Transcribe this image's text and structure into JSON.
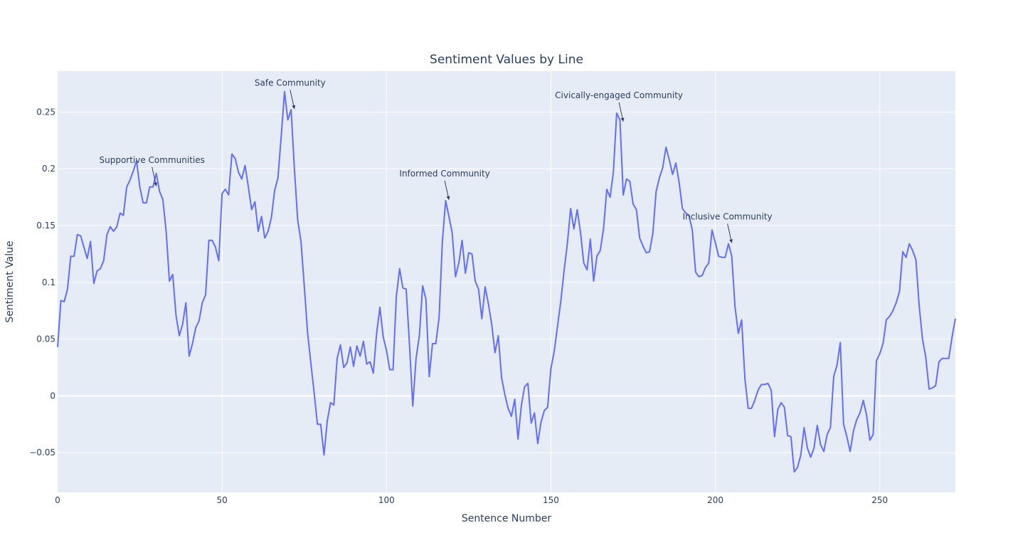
{
  "chart_data": {
    "type": "line",
    "title": "Sentiment Values by Line",
    "xlabel": "Sentence Number",
    "ylabel": "Sentiment Value",
    "xlim": [
      0,
      273
    ],
    "ylim": [
      -0.085,
      0.286
    ],
    "x_ticks": [
      0,
      50,
      100,
      150,
      200,
      250
    ],
    "x_tick_labels": [
      "0",
      "50",
      "100",
      "150",
      "200",
      "250"
    ],
    "y_ticks": [
      -0.05,
      0,
      0.05,
      0.1,
      0.15,
      0.2,
      0.25
    ],
    "y_tick_labels": [
      "−0.05",
      "0",
      "0.05",
      "0.1",
      "0.15",
      "0.2",
      "0.25"
    ],
    "grid": true,
    "plot_bgcolor": "#e5ecf6",
    "grid_color": "#ffffff",
    "line_color": "#636efa",
    "series": [
      {
        "x": [
          0,
          1,
          2,
          3,
          4,
          5,
          6,
          7,
          8,
          9,
          10,
          11,
          12,
          13,
          14,
          15,
          16,
          17,
          18,
          19,
          20,
          21,
          22,
          23,
          24,
          25,
          26,
          27,
          28,
          29,
          30,
          31,
          32,
          33,
          34,
          35,
          36,
          37,
          38,
          39,
          40,
          41,
          42,
          43,
          44,
          45,
          46,
          47,
          48,
          49,
          50,
          51,
          52,
          53,
          54,
          55,
          56,
          57,
          58,
          59,
          60,
          61,
          62,
          63,
          64,
          65,
          66,
          67,
          68,
          69,
          70,
          71,
          72,
          73,
          74,
          75,
          76,
          77,
          78,
          79,
          80,
          81,
          82,
          83,
          84,
          85,
          86,
          87,
          88,
          89,
          90,
          91,
          92,
          93,
          94,
          95,
          96,
          97,
          98,
          99,
          100,
          101,
          102,
          103,
          104,
          105,
          106,
          107,
          108,
          109,
          110,
          111,
          112,
          113,
          114,
          115,
          116,
          117,
          118,
          119,
          120,
          121,
          122,
          123,
          124,
          125,
          126,
          127,
          128,
          129,
          130,
          131,
          132,
          133,
          134,
          135,
          136,
          137,
          138,
          139,
          140,
          141,
          142,
          143,
          144,
          145,
          146,
          147,
          148,
          149,
          150,
          151,
          152,
          153,
          154,
          155,
          156,
          157,
          158,
          159,
          160,
          161,
          162,
          163,
          164,
          165,
          166,
          167,
          168,
          169,
          170,
          171,
          172,
          173,
          174,
          175,
          176,
          177,
          178,
          179,
          180,
          181,
          182,
          183,
          184,
          185,
          186,
          187,
          188,
          189,
          190,
          191,
          192,
          193,
          194,
          195,
          196,
          197,
          198,
          199,
          200,
          201,
          202,
          203,
          204,
          205,
          206,
          207,
          208,
          209,
          210,
          211,
          212,
          213,
          214,
          215,
          216,
          217,
          218,
          219,
          220,
          221,
          222,
          223,
          224,
          225,
          226,
          227,
          228,
          229,
          230,
          231,
          232,
          233,
          234,
          235,
          236,
          237,
          238,
          239,
          240,
          241,
          242,
          243,
          244,
          245,
          246,
          247,
          248,
          249,
          250,
          251,
          252,
          253,
          254,
          255,
          256,
          257,
          258,
          259,
          260,
          261,
          262,
          263,
          264,
          265,
          266,
          267,
          268,
          269,
          270,
          271,
          272,
          273
        ],
        "y": [
          0.043,
          0.084,
          0.083,
          0.094,
          0.123,
          0.123,
          0.142,
          0.141,
          0.131,
          0.121,
          0.136,
          0.099,
          0.11,
          0.112,
          0.119,
          0.142,
          0.149,
          0.145,
          0.149,
          0.161,
          0.159,
          0.184,
          0.19,
          0.198,
          0.207,
          0.184,
          0.17,
          0.17,
          0.184,
          0.184,
          0.196,
          0.18,
          0.173,
          0.145,
          0.101,
          0.107,
          0.071,
          0.053,
          0.063,
          0.082,
          0.035,
          0.046,
          0.06,
          0.066,
          0.082,
          0.089,
          0.137,
          0.137,
          0.131,
          0.119,
          0.178,
          0.182,
          0.177,
          0.213,
          0.209,
          0.197,
          0.191,
          0.203,
          0.184,
          0.164,
          0.171,
          0.145,
          0.158,
          0.139,
          0.145,
          0.157,
          0.181,
          0.192,
          0.229,
          0.268,
          0.243,
          0.252,
          0.2,
          0.155,
          0.136,
          0.097,
          0.056,
          0.029,
          0.003,
          -0.025,
          -0.025,
          -0.052,
          -0.022,
          -0.006,
          -0.008,
          0.033,
          0.045,
          0.025,
          0.029,
          0.043,
          0.026,
          0.044,
          0.035,
          0.048,
          0.028,
          0.03,
          0.02,
          0.055,
          0.078,
          0.052,
          0.04,
          0.023,
          0.023,
          0.088,
          0.112,
          0.095,
          0.094,
          0.045,
          -0.009,
          0.033,
          0.053,
          0.097,
          0.085,
          0.017,
          0.046,
          0.046,
          0.069,
          0.136,
          0.172,
          0.158,
          0.143,
          0.105,
          0.117,
          0.137,
          0.108,
          0.126,
          0.125,
          0.101,
          0.094,
          0.068,
          0.096,
          0.081,
          0.063,
          0.038,
          0.053,
          0.016,
          0.001,
          -0.011,
          -0.018,
          -0.003,
          -0.038,
          -0.009,
          0.008,
          0.011,
          -0.024,
          -0.015,
          -0.042,
          -0.023,
          -0.013,
          -0.01,
          0.024,
          0.039,
          0.061,
          0.083,
          0.11,
          0.134,
          0.165,
          0.147,
          0.164,
          0.144,
          0.117,
          0.111,
          0.138,
          0.101,
          0.123,
          0.128,
          0.147,
          0.182,
          0.175,
          0.197,
          0.249,
          0.243,
          0.177,
          0.191,
          0.189,
          0.169,
          0.164,
          0.139,
          0.132,
          0.126,
          0.127,
          0.143,
          0.18,
          0.192,
          0.201,
          0.219,
          0.208,
          0.195,
          0.205,
          0.188,
          0.165,
          0.161,
          0.159,
          0.146,
          0.109,
          0.105,
          0.106,
          0.113,
          0.117,
          0.146,
          0.135,
          0.123,
          0.122,
          0.122,
          0.134,
          0.123,
          0.078,
          0.055,
          0.067,
          0.015,
          -0.011,
          -0.011,
          -0.004,
          0.005,
          0.01,
          0.01,
          0.011,
          0.005,
          -0.036,
          -0.012,
          -0.006,
          -0.01,
          -0.035,
          -0.036,
          -0.067,
          -0.063,
          -0.052,
          -0.028,
          -0.046,
          -0.054,
          -0.046,
          -0.026,
          -0.043,
          -0.049,
          -0.034,
          -0.028,
          0.017,
          0.027,
          0.047,
          -0.025,
          -0.036,
          -0.049,
          -0.031,
          -0.021,
          -0.015,
          -0.004,
          -0.017,
          -0.039,
          -0.034,
          0.031,
          0.037,
          0.046,
          0.067,
          0.07,
          0.075,
          0.082,
          0.092,
          0.127,
          0.122,
          0.134,
          0.128,
          0.12,
          0.079,
          0.05,
          0.034,
          0.006,
          0.007,
          0.009,
          0.03,
          0.033,
          0.033,
          0.033,
          0.052,
          0.068
        ]
      }
    ],
    "annotations": [
      {
        "text": "Supportive Communities",
        "x": 30,
        "y": 0.184
      },
      {
        "text": "Safe Community",
        "x": 72,
        "y": 0.252
      },
      {
        "text": "Informed Community",
        "x": 119,
        "y": 0.172
      },
      {
        "text": "Civically-engaged Community",
        "x": 172,
        "y": 0.241
      },
      {
        "text": "Inclusive Community",
        "x": 205,
        "y": 0.134
      }
    ]
  }
}
